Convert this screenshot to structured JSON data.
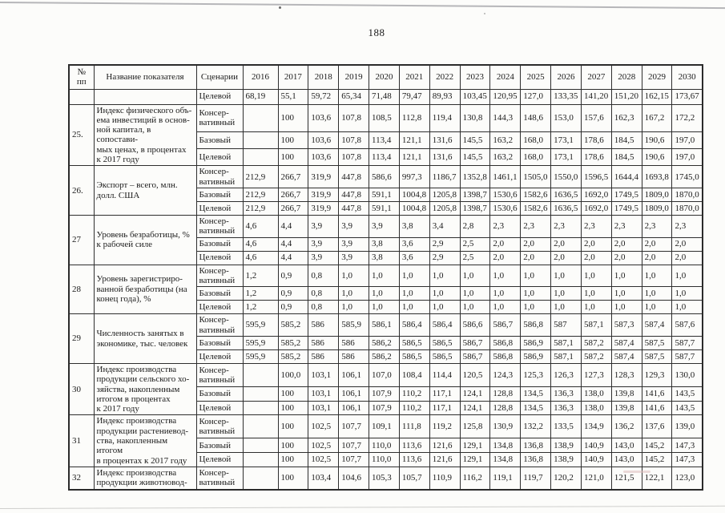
{
  "page": {
    "number": "188"
  },
  "table": {
    "columns": {
      "num": "№ пп",
      "name": "Название показателя",
      "scenario": "Сценарии",
      "years": [
        "2016",
        "2017",
        "2018",
        "2019",
        "2020",
        "2021",
        "2022",
        "2023",
        "2024",
        "2025",
        "2026",
        "2027",
        "2028",
        "2029",
        "2030"
      ]
    },
    "rows": [
      {
        "num": "",
        "name": "",
        "scenarios": [
          {
            "label": "Целевой",
            "values": [
              "68,19",
              "55,1",
              "59,72",
              "65,34",
              "71,48",
              "79,47",
              "89,93",
              "103,45",
              "120,95",
              "127,0",
              "133,35",
              "141,20",
              "151,20",
              "162,15",
              "173,67"
            ]
          }
        ]
      },
      {
        "num": "25.",
        "name": "Индекс физического объ-\nема инвестиций в основ-\nной капитал, в сопостави-\nмых ценах, в процентах\nк 2017 году",
        "scenarios": [
          {
            "label": "Консер-\nвативный",
            "values": [
              "",
              "100",
              "103,6",
              "107,8",
              "108,5",
              "112,8",
              "119,4",
              "130,8",
              "144,3",
              "148,6",
              "153,0",
              "157,6",
              "162,3",
              "167,2",
              "172,2"
            ]
          },
          {
            "label": "Базовый",
            "values": [
              "",
              "100",
              "103,6",
              "107,8",
              "113,4",
              "121,1",
              "131,6",
              "145,5",
              "163,2",
              "168,0",
              "173,1",
              "178,6",
              "184,5",
              "190,6",
              "197,0"
            ]
          },
          {
            "label": "Целевой",
            "values": [
              "",
              "100",
              "103,6",
              "107,8",
              "113,4",
              "121,1",
              "131,6",
              "145,5",
              "163,2",
              "168,0",
              "173,1",
              "178,6",
              "184,5",
              "190,6",
              "197,0"
            ]
          }
        ]
      },
      {
        "num": "26.",
        "name": "Экспорт – всего, млн.\nдолл. США",
        "scenarios": [
          {
            "label": "Консер-\nвативный",
            "values": [
              "212,9",
              "266,7",
              "319,9",
              "447,8",
              "586,6",
              "997,3",
              "1186,7",
              "1352,8",
              "1461,1",
              "1505,0",
              "1550,0",
              "1596,5",
              "1644,4",
              "1693,8",
              "1745,0"
            ]
          },
          {
            "label": "Базовый",
            "values": [
              "212,9",
              "266,7",
              "319,9",
              "447,8",
              "591,1",
              "1004,8",
              "1205,8",
              "1398,7",
              "1530,6",
              "1582,6",
              "1636,5",
              "1692,0",
              "1749,5",
              "1809,0",
              "1870,0"
            ]
          },
          {
            "label": "Целевой",
            "values": [
              "212,9",
              "266,7",
              "319,9",
              "447,8",
              "591,1",
              "1004,8",
              "1205,8",
              "1398,7",
              "1530,6",
              "1582,6",
              "1636,5",
              "1692,0",
              "1749,5",
              "1809,0",
              "1870,0"
            ]
          }
        ]
      },
      {
        "num": "27",
        "name": "Уровень безработицы, %\nк рабочей силе",
        "scenarios": [
          {
            "label": "Консер-\nвативный",
            "values": [
              "4,6",
              "4,4",
              "3,9",
              "3,9",
              "3,9",
              "3,8",
              "3,4",
              "2,8",
              "2,3",
              "2,3",
              "2,3",
              "2,3",
              "2,3",
              "2,3",
              "2,3"
            ]
          },
          {
            "label": "Базовый",
            "values": [
              "4,6",
              "4,4",
              "3,9",
              "3,9",
              "3,8",
              "3,6",
              "2,9",
              "2,5",
              "2,0",
              "2,0",
              "2,0",
              "2,0",
              "2,0",
              "2,0",
              "2,0"
            ]
          },
          {
            "label": "Целевой",
            "values": [
              "4,6",
              "4,4",
              "3,9",
              "3,9",
              "3,8",
              "3,6",
              "2,9",
              "2,5",
              "2,0",
              "2,0",
              "2,0",
              "2,0",
              "2,0",
              "2,0",
              "2,0"
            ]
          }
        ]
      },
      {
        "num": "28",
        "name": "Уровень зарегистриро-\nванной безработицы (на\nконец года), %",
        "scenarios": [
          {
            "label": "Консер-\nвативный",
            "values": [
              "1,2",
              "0,9",
              "0,8",
              "1,0",
              "1,0",
              "1,0",
              "1,0",
              "1,0",
              "1,0",
              "1,0",
              "1,0",
              "1,0",
              "1,0",
              "1,0",
              "1,0"
            ]
          },
          {
            "label": "Базовый",
            "values": [
              "1,2",
              "0,9",
              "0,8",
              "1,0",
              "1,0",
              "1,0",
              "1,0",
              "1,0",
              "1,0",
              "1,0",
              "1,0",
              "1,0",
              "1,0",
              "1,0",
              "1,0"
            ]
          },
          {
            "label": "Целевой",
            "values": [
              "1,2",
              "0,9",
              "0,8",
              "1,0",
              "1,0",
              "1,0",
              "1,0",
              "1,0",
              "1,0",
              "1,0",
              "1,0",
              "1,0",
              "1,0",
              "1,0",
              "1,0"
            ]
          }
        ]
      },
      {
        "num": "29",
        "name": "Численность занятых в\nэкономике, тыс. человек",
        "scenarios": [
          {
            "label": "Консер-\nвативный",
            "values": [
              "595,9",
              "585,2",
              "586",
              "585,9",
              "586,1",
              "586,4",
              "586,4",
              "586,6",
              "586,7",
              "586,8",
              "587",
              "587,1",
              "587,3",
              "587,4",
              "587,6"
            ]
          },
          {
            "label": "Базовый",
            "values": [
              "595,9",
              "585,2",
              "586",
              "586",
              "586,2",
              "586,5",
              "586,5",
              "586,7",
              "586,8",
              "586,9",
              "587,1",
              "587,2",
              "587,4",
              "587,5",
              "587,7"
            ]
          },
          {
            "label": "Целевой",
            "values": [
              "595,9",
              "585,2",
              "586",
              "586",
              "586,2",
              "586,5",
              "586,5",
              "586,7",
              "586,8",
              "586,9",
              "587,1",
              "587,2",
              "587,4",
              "587,5",
              "587,7"
            ]
          }
        ]
      },
      {
        "num": "30",
        "name": "Индекс производства\nпродукции сельского хо-\nзяйства, накопленным\nитогом в процентах\nк 2017 году",
        "scenarios": [
          {
            "label": "Консер-\nвативный",
            "values": [
              "",
              "100,0",
              "103,1",
              "106,1",
              "107,0",
              "108,4",
              "114,4",
              "120,5",
              "124,3",
              "125,3",
              "126,3",
              "127,3",
              "128,3",
              "129,3",
              "130,0"
            ]
          },
          {
            "label": "Базовый",
            "values": [
              "",
              "100",
              "103,1",
              "106,1",
              "107,9",
              "110,2",
              "117,1",
              "124,1",
              "128,8",
              "134,5",
              "136,3",
              "138,0",
              "139,8",
              "141,6",
              "143,5"
            ]
          },
          {
            "label": "Целевой",
            "values": [
              "",
              "100",
              "103,1",
              "106,1",
              "107,9",
              "110,2",
              "117,1",
              "124,1",
              "128,8",
              "134,5",
              "136,3",
              "138,0",
              "139,8",
              "141,6",
              "143,5"
            ]
          }
        ]
      },
      {
        "num": "31",
        "name": "Индекс производства\nпродукции растениевод-\nства, накопленным итогом\nв процентах к 2017 году",
        "scenarios": [
          {
            "label": "Консер-\nвативный",
            "values": [
              "",
              "100",
              "102,5",
              "107,7",
              "109,1",
              "111,8",
              "119,2",
              "125,8",
              "130,9",
              "132,2",
              "133,5",
              "134,9",
              "136,2",
              "137,6",
              "139,0"
            ]
          },
          {
            "label": "Базовый",
            "values": [
              "",
              "100",
              "102,5",
              "107,7",
              "110,0",
              "113,6",
              "121,6",
              "129,1",
              "134,8",
              "136,8",
              "138,9",
              "140,9",
              "143,0",
              "145,2",
              "147,3"
            ]
          },
          {
            "label": "Целевой",
            "values": [
              "",
              "100",
              "102,5",
              "107,7",
              "110,0",
              "113,6",
              "121,6",
              "129,1",
              "134,8",
              "136,8",
              "138,9",
              "140,9",
              "143,0",
              "145,2",
              "147,3"
            ]
          }
        ]
      },
      {
        "num": "32",
        "name": "Индекс производства\nпродукции животновод-",
        "scenarios": [
          {
            "label": "Консер-\nвативный",
            "values": [
              "",
              "100",
              "103,4",
              "104,6",
              "105,3",
              "105,7",
              "110,9",
              "116,2",
              "119,1",
              "119,7",
              "120,2",
              "121,0",
              "121,5",
              "122,1",
              "123,0"
            ]
          }
        ]
      }
    ]
  }
}
